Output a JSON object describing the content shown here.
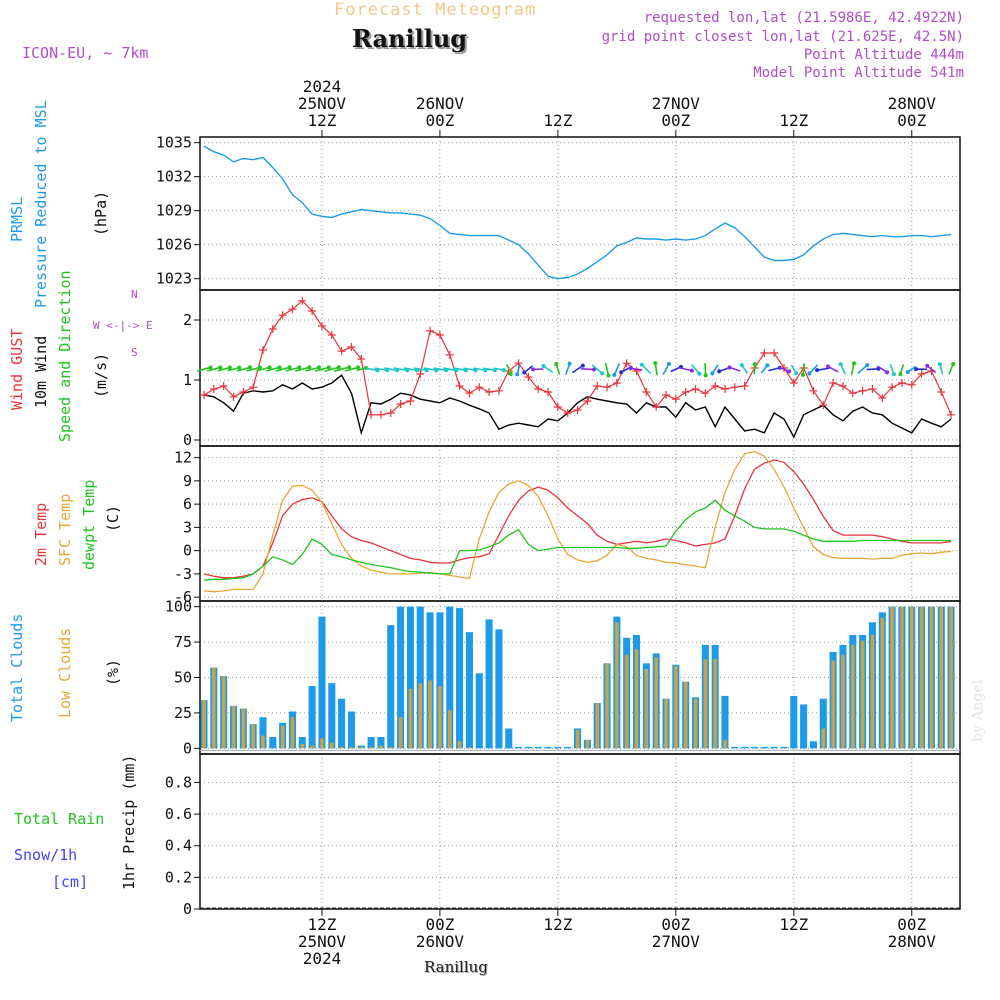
{
  "header": {
    "model": "ICON-EU, ~ 7km",
    "title": "Forecast Meteogram",
    "station": "Ranillug",
    "requested": "requested lon,lat (21.5986E, 42.4922N)",
    "grid": "grid point closest lon,lat (21.625E, 42.5N)",
    "point_alt": "Point Altitude 444m",
    "model_alt": "Model Point Altitude 541m",
    "footer_station": "Ranillug",
    "credit": "by Angel"
  },
  "time_axis": {
    "top_labels": [
      {
        "l1": "2024",
        "l2": "25NOV",
        "l3": "12Z",
        "t": 12
      },
      {
        "l1": "",
        "l2": "26NOV",
        "l3": "00Z",
        "t": 24
      },
      {
        "l1": "",
        "l2": "",
        "l3": "12Z",
        "t": 36
      },
      {
        "l1": "",
        "l2": "27NOV",
        "l3": "00Z",
        "t": 48
      },
      {
        "l1": "",
        "l2": "",
        "l3": "12Z",
        "t": 60
      },
      {
        "l1": "",
        "l2": "28NOV",
        "l3": "00Z",
        "t": 72
      }
    ],
    "bottom_labels": [
      {
        "l1": "12Z",
        "l2": "25NOV",
        "l3": "2024",
        "t": 12
      },
      {
        "l1": "00Z",
        "l2": "26NOV",
        "l3": "",
        "t": 24
      },
      {
        "l1": "12Z",
        "l2": "",
        "l3": "",
        "t": 36
      },
      {
        "l1": "00Z",
        "l2": "27NOV",
        "l3": "",
        "t": 48
      },
      {
        "l1": "12Z",
        "l2": "",
        "l3": "",
        "t": 60
      },
      {
        "l1": "00Z",
        "l2": "28NOV",
        "l3": "",
        "t": 72
      }
    ]
  },
  "colors": {
    "pressure": "#1e9be8",
    "gust": "#e8343c",
    "wind": "#000000",
    "t2m": "#e8343c",
    "sfc": "#e8a838",
    "dewpt": "#22c41e",
    "cloud_total": "#1e9be8",
    "cloud_low": "#c9a24a",
    "rain": "#22c41e",
    "snow": "#4444ee",
    "side_purple": "#b04ec8"
  },
  "panels": {
    "pressure": {
      "labels": [
        "PRMSL",
        "Pressure Reduced to MSL",
        "(hPa)"
      ],
      "yticks": [
        "1035",
        "1032",
        "1029",
        "1026",
        "1023"
      ]
    },
    "wind": {
      "labels": [
        "Wind GUST",
        "10m Wind",
        "Speed and Direction",
        "(m/s)"
      ],
      "compass": [
        "N",
        "S",
        "W <-|-> E"
      ],
      "yticks": [
        "2",
        "1",
        "0"
      ]
    },
    "temp": {
      "labels": [
        "2m Temp",
        "SFC Temp",
        "dewpt Temp",
        "(C)"
      ],
      "yticks": [
        "12",
        "9",
        "6",
        "3",
        "0",
        "-3",
        "-6"
      ]
    },
    "cloud": {
      "labels": [
        "Total Clouds",
        "Low Clouds",
        "(%)"
      ],
      "yticks": [
        "100",
        "75",
        "50",
        "25",
        "0"
      ]
    },
    "precip": {
      "labels": [
        "1hr Precip (mm)"
      ],
      "side": [
        "Total Rain",
        "Snow/1h",
        "[cm]"
      ],
      "yticks": [
        "0.8",
        "0.6",
        "0.4",
        "0.2",
        "0"
      ]
    }
  },
  "chart_data": [
    {
      "type": "line",
      "title": "PRMSL Pressure Reduced to MSL",
      "ylabel": "(hPa)",
      "ylim": [
        1022,
        1035.5
      ],
      "x_hours": [
        0,
        1,
        2,
        3,
        4,
        5,
        6,
        7,
        8,
        9,
        10,
        11,
        12,
        13,
        14,
        15,
        16,
        17,
        18,
        19,
        20,
        21,
        22,
        23,
        24,
        25,
        26,
        27,
        28,
        29,
        30,
        31,
        32,
        33,
        34,
        35,
        36,
        37,
        38,
        39,
        40,
        41,
        42,
        43,
        44,
        45,
        46,
        47,
        48,
        49,
        50,
        51,
        52,
        53,
        54,
        55,
        56,
        57,
        58,
        59,
        60,
        61,
        62,
        63,
        64,
        65,
        66,
        67,
        68,
        69,
        70,
        71,
        72,
        73,
        74,
        75,
        76
      ],
      "series": [
        {
          "name": "PRMSL",
          "values": [
            1034.7,
            1034.2,
            1033.9,
            1033.3,
            1033.6,
            1033.5,
            1033.7,
            1032.8,
            1031.8,
            1030.4,
            1029.7,
            1028.7,
            1028.5,
            1028.4,
            1028.7,
            1028.9,
            1029.1,
            1029.0,
            1028.9,
            1028.8,
            1028.8,
            1028.7,
            1028.6,
            1028.3,
            1027.7,
            1027.0,
            1026.9,
            1026.8,
            1026.8,
            1026.8,
            1026.8,
            1026.4,
            1026.0,
            1025.2,
            1024.2,
            1023.2,
            1023.0,
            1023.1,
            1023.4,
            1023.9,
            1024.5,
            1025.1,
            1025.9,
            1026.2,
            1026.6,
            1026.5,
            1026.5,
            1026.4,
            1026.5,
            1026.4,
            1026.5,
            1026.8,
            1027.4,
            1027.9,
            1027.5,
            1026.7,
            1025.8,
            1024.9,
            1024.6,
            1024.6,
            1024.7,
            1025.1,
            1025.9,
            1026.5,
            1026.9,
            1027.0,
            1026.9,
            1026.8,
            1026.7,
            1026.8,
            1026.7,
            1026.7,
            1026.8,
            1026.8,
            1026.7,
            1026.8,
            1026.9
          ]
        }
      ]
    },
    {
      "type": "line",
      "title": "Wind GUST / 10m Wind Speed and Direction",
      "ylabel": "(m/s)",
      "ylim": [
        -0.1,
        2.5
      ],
      "x_hours": [
        0,
        1,
        2,
        3,
        4,
        5,
        6,
        7,
        8,
        9,
        10,
        11,
        12,
        13,
        14,
        15,
        16,
        17,
        18,
        19,
        20,
        21,
        22,
        23,
        24,
        25,
        26,
        27,
        28,
        29,
        30,
        31,
        32,
        33,
        34,
        35,
        36,
        37,
        38,
        39,
        40,
        41,
        42,
        43,
        44,
        45,
        46,
        47,
        48,
        49,
        50,
        51,
        52,
        53,
        54,
        55,
        56,
        57,
        58,
        59,
        60,
        61,
        62,
        63,
        64,
        65,
        66,
        67,
        68,
        69,
        70,
        71,
        72,
        73,
        74,
        75,
        76
      ],
      "series": [
        {
          "name": "Wind GUST",
          "values": [
            0.75,
            0.85,
            0.9,
            0.72,
            0.8,
            0.88,
            1.5,
            1.85,
            2.08,
            2.18,
            2.32,
            2.15,
            1.9,
            1.75,
            1.48,
            1.55,
            1.35,
            0.42,
            0.42,
            0.45,
            0.6,
            0.65,
            1.1,
            1.82,
            1.75,
            1.42,
            0.9,
            0.78,
            0.88,
            0.8,
            0.82,
            1.15,
            1.28,
            1.05,
            0.85,
            0.8,
            0.55,
            0.45,
            0.5,
            0.65,
            0.9,
            0.88,
            0.95,
            1.28,
            1.15,
            0.8,
            0.55,
            0.75,
            0.68,
            0.8,
            0.85,
            0.78,
            0.9,
            0.85,
            0.88,
            0.9,
            1.2,
            1.45,
            1.45,
            1.2,
            0.95,
            1.2,
            0.82,
            0.58,
            0.95,
            0.9,
            0.78,
            0.82,
            0.85,
            0.7,
            0.88,
            0.95,
            0.92,
            1.1,
            1.15,
            0.8,
            0.42
          ]
        },
        {
          "name": "10m Wind",
          "values": [
            0.75,
            0.72,
            0.62,
            0.48,
            0.78,
            0.82,
            0.8,
            0.82,
            0.92,
            0.85,
            0.95,
            0.85,
            0.88,
            0.95,
            1.08,
            0.78,
            0.12,
            0.62,
            0.6,
            0.68,
            0.78,
            0.75,
            0.68,
            0.65,
            0.62,
            0.7,
            0.65,
            0.58,
            0.52,
            0.45,
            0.18,
            0.25,
            0.28,
            0.25,
            0.22,
            0.35,
            0.32,
            0.45,
            0.62,
            0.72,
            0.68,
            0.65,
            0.62,
            0.6,
            0.45,
            0.62,
            0.55,
            0.55,
            0.38,
            0.62,
            0.5,
            0.55,
            0.22,
            0.55,
            0.35,
            0.15,
            0.18,
            0.12,
            0.45,
            0.35,
            0.05,
            0.42,
            0.5,
            0.58,
            0.42,
            0.32,
            0.48,
            0.55,
            0.45,
            0.42,
            0.28,
            0.2,
            0.12,
            0.35,
            0.28,
            0.22,
            0.35
          ]
        }
      ]
    },
    {
      "type": "line",
      "title": "2m Temp / SFC Temp / dewpt Temp",
      "ylabel": "(C)",
      "ylim": [
        -6.5,
        13.5
      ],
      "x_hours": [
        0,
        1,
        2,
        3,
        4,
        5,
        6,
        7,
        8,
        9,
        10,
        11,
        12,
        13,
        14,
        15,
        16,
        17,
        18,
        19,
        20,
        21,
        22,
        23,
        24,
        25,
        26,
        27,
        28,
        29,
        30,
        31,
        32,
        33,
        34,
        35,
        36,
        37,
        38,
        39,
        40,
        41,
        42,
        43,
        44,
        45,
        46,
        47,
        48,
        49,
        50,
        51,
        52,
        53,
        54,
        55,
        56,
        57,
        58,
        59,
        60,
        61,
        62,
        63,
        64,
        65,
        66,
        67,
        68,
        69,
        70,
        71,
        72,
        73,
        74,
        75,
        76
      ],
      "series": [
        {
          "name": "2m Temp",
          "values": [
            -3.0,
            -3.3,
            -3.5,
            -3.5,
            -3.3,
            -3.0,
            -2.0,
            1.0,
            4.5,
            6.0,
            6.6,
            6.8,
            6.3,
            4.5,
            2.8,
            1.8,
            1.3,
            1.0,
            0.5,
            0.0,
            -0.5,
            -1.0,
            -1.2,
            -1.5,
            -1.6,
            -1.6,
            -1.2,
            -0.9,
            -0.8,
            -0.4,
            2.0,
            4.5,
            6.5,
            7.7,
            8.2,
            7.8,
            6.8,
            5.5,
            4.5,
            3.5,
            2.0,
            1.2,
            0.8,
            1.0,
            1.2,
            1.0,
            1.2,
            1.5,
            1.3,
            1.0,
            0.6,
            0.8,
            1.0,
            1.5,
            4.5,
            8.0,
            10.5,
            11.3,
            11.7,
            11.4,
            10.2,
            8.6,
            6.6,
            4.4,
            2.6,
            2.0,
            2.0,
            2.0,
            2.0,
            1.8,
            1.5,
            1.2,
            1.0,
            1.0,
            1.0,
            1.0,
            1.2
          ]
        },
        {
          "name": "SFC Temp",
          "values": [
            -5.2,
            -5.3,
            -5.2,
            -5.0,
            -5.0,
            -5.0,
            -3.0,
            2.0,
            6.5,
            8.3,
            8.4,
            7.8,
            6.2,
            3.5,
            0.8,
            -1.0,
            -2.0,
            -2.5,
            -2.8,
            -3.0,
            -3.0,
            -3.0,
            -2.9,
            -2.8,
            -3.0,
            -3.2,
            -3.4,
            -3.6,
            1.5,
            5.0,
            7.5,
            8.6,
            9.0,
            8.4,
            7.0,
            4.5,
            1.5,
            -0.5,
            -1.2,
            -1.5,
            -1.3,
            -0.6,
            0.8,
            0.5,
            -0.6,
            -1.0,
            -1.2,
            -1.5,
            -1.6,
            -1.8,
            -2.0,
            -2.2,
            3.0,
            7.5,
            10.5,
            12.5,
            12.8,
            12.2,
            10.5,
            8.2,
            5.5,
            3.0,
            0.5,
            -0.5,
            -0.9,
            -1.0,
            -1.0,
            -1.0,
            -1.1,
            -1.0,
            -1.0,
            -0.6,
            -0.4,
            -0.3,
            -0.4,
            -0.2,
            -0.1
          ]
        },
        {
          "name": "dewpt Temp",
          "values": [
            -3.8,
            -3.7,
            -3.7,
            -3.6,
            -3.5,
            -3.0,
            -2.0,
            -0.8,
            -1.2,
            -1.8,
            -0.5,
            1.5,
            0.8,
            -0.5,
            -0.8,
            -1.2,
            -1.5,
            -1.8,
            -2.0,
            -2.2,
            -2.5,
            -2.7,
            -2.8,
            -2.9,
            -3.0,
            -3.0,
            0.0,
            0.0,
            0.1,
            0.5,
            1.0,
            2.0,
            2.7,
            0.8,
            0.0,
            0.2,
            0.4,
            0.4,
            0.4,
            0.4,
            0.4,
            0.4,
            0.4,
            0.3,
            0.3,
            0.4,
            0.5,
            0.6,
            2.5,
            4.0,
            5.0,
            5.5,
            6.5,
            5.2,
            4.5,
            3.8,
            3.0,
            2.8,
            2.8,
            2.8,
            2.5,
            2.0,
            1.5,
            1.2,
            1.2,
            1.2,
            1.2,
            1.3,
            1.3,
            1.3,
            1.3,
            1.3,
            1.3,
            1.3,
            1.3,
            1.3,
            1.3
          ]
        }
      ]
    },
    {
      "type": "bar",
      "title": "Total Clouds / Low Clouds",
      "ylabel": "(%)",
      "ylim": [
        -4,
        104
      ],
      "x_hours": [
        0,
        1,
        2,
        3,
        4,
        5,
        6,
        7,
        8,
        9,
        10,
        11,
        12,
        13,
        14,
        15,
        16,
        17,
        18,
        19,
        20,
        21,
        22,
        23,
        24,
        25,
        26,
        27,
        28,
        29,
        30,
        31,
        32,
        33,
        34,
        35,
        36,
        37,
        38,
        39,
        40,
        41,
        42,
        43,
        44,
        45,
        46,
        47,
        48,
        49,
        50,
        51,
        52,
        53,
        54,
        55,
        56,
        57,
        58,
        59,
        60,
        61,
        62,
        63,
        64,
        65,
        66,
        67,
        68,
        69,
        70,
        71,
        72,
        73,
        74,
        75,
        76
      ],
      "series": [
        {
          "name": "Total Clouds",
          "values": [
            34,
            57,
            51,
            30,
            28,
            17,
            22,
            8,
            18,
            26,
            8,
            44,
            93,
            46,
            35,
            26,
            2,
            8,
            8,
            87,
            100,
            100,
            100,
            96,
            96,
            100,
            99,
            82,
            53,
            91,
            84,
            14,
            1,
            1,
            1,
            1,
            1,
            1,
            14,
            6,
            32,
            60,
            93,
            78,
            80,
            60,
            67,
            35,
            59,
            47,
            36,
            73,
            73,
            37,
            1,
            1,
            1,
            1,
            1,
            1,
            37,
            31,
            5,
            35,
            68,
            73,
            80,
            80,
            89,
            96,
            100,
            100,
            100,
            100,
            100,
            100,
            100
          ]
        },
        {
          "name": "Low Clouds",
          "values": [
            34,
            57,
            51,
            30,
            28,
            17,
            9,
            0,
            16,
            22,
            3,
            2,
            7,
            4,
            1,
            1,
            1,
            1,
            2,
            1,
            22,
            42,
            46,
            48,
            44,
            27,
            5,
            1,
            0,
            0,
            0,
            0,
            0,
            0,
            0,
            0,
            0,
            0,
            13,
            6,
            32,
            60,
            89,
            66,
            70,
            56,
            64,
            35,
            58,
            47,
            35,
            63,
            63,
            6,
            0,
            0,
            0,
            0,
            0,
            0,
            0,
            0,
            0,
            14,
            62,
            66,
            73,
            76,
            80,
            92,
            100,
            100,
            100,
            100,
            100,
            100,
            100
          ]
        }
      ]
    },
    {
      "type": "bar",
      "title": "Total Rain / Snow 1hr Precip",
      "ylabel": "1hr Precip (mm)",
      "ylim": [
        0,
        0.98
      ],
      "x_hours": [
        0,
        76
      ],
      "series": [
        {
          "name": "Total Rain",
          "values": [
            0,
            0
          ]
        },
        {
          "name": "Snow/1h [cm]",
          "values": [
            0,
            0
          ]
        }
      ]
    }
  ]
}
